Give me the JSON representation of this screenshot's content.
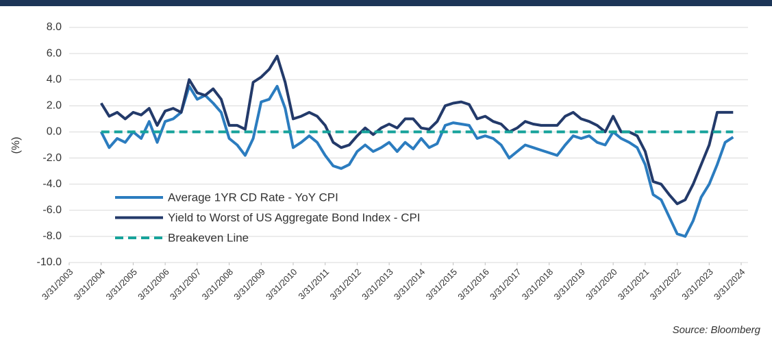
{
  "chart_data": {
    "type": "line",
    "y_label": "(%)",
    "source": "Source: Bloomberg",
    "x": [
      2004.25,
      2004.5,
      2004.75,
      2005,
      2005.25,
      2005.5,
      2005.75,
      2006,
      2006.25,
      2006.5,
      2006.75,
      2007,
      2007.25,
      2007.5,
      2007.75,
      2008,
      2008.25,
      2008.5,
      2008.75,
      2009,
      2009.25,
      2009.5,
      2009.75,
      2010,
      2010.25,
      2010.5,
      2010.75,
      2011,
      2011.25,
      2011.5,
      2011.75,
      2012,
      2012.25,
      2012.5,
      2012.75,
      2013,
      2013.25,
      2013.5,
      2013.75,
      2014,
      2014.25,
      2014.5,
      2014.75,
      2015,
      2015.25,
      2015.5,
      2015.75,
      2016,
      2016.25,
      2016.5,
      2016.75,
      2017,
      2017.25,
      2017.5,
      2017.75,
      2018,
      2018.25,
      2018.5,
      2018.75,
      2019,
      2019.25,
      2019.5,
      2019.75,
      2020,
      2020.25,
      2020.5,
      2020.75,
      2021,
      2021.25,
      2021.5,
      2021.75,
      2022,
      2022.25,
      2022.5,
      2022.75,
      2023,
      2023.25,
      2023.5,
      2023.75,
      2024
    ],
    "series": [
      {
        "name": "Average 1YR CD Rate - YoY CPI",
        "color": "#2b7cbf",
        "dash": false,
        "values": [
          0.0,
          -1.2,
          -0.5,
          -0.8,
          0.0,
          -0.5,
          0.8,
          -0.8,
          0.8,
          1.0,
          1.5,
          3.5,
          2.5,
          2.8,
          2.2,
          1.5,
          -0.5,
          -1.0,
          -1.8,
          -0.5,
          2.3,
          2.5,
          3.5,
          1.8,
          -1.2,
          -0.8,
          -0.3,
          -0.8,
          -1.8,
          -2.6,
          -2.8,
          -2.5,
          -1.5,
          -1.0,
          -1.5,
          -1.2,
          -0.8,
          -1.5,
          -0.8,
          -1.3,
          -0.5,
          -1.2,
          -0.9,
          0.5,
          0.7,
          0.6,
          0.5,
          -0.5,
          -0.3,
          -0.5,
          -1.0,
          -2.0,
          -1.5,
          -1.0,
          -1.2,
          -1.4,
          -1.6,
          -1.8,
          -1.0,
          -0.3,
          -0.5,
          -0.3,
          -0.8,
          -1.0,
          0.0,
          -0.5,
          -0.8,
          -1.2,
          -2.5,
          -4.8,
          -5.2,
          -6.5,
          -7.8,
          -8.0,
          -6.8,
          -5.0,
          -4.0,
          -2.5,
          -0.8,
          -0.4
        ]
      },
      {
        "name": "Yield to Worst of US Aggregate Bond Index - CPI",
        "color": "#233a6a",
        "dash": false,
        "values": [
          2.2,
          1.2,
          1.5,
          1.0,
          1.5,
          1.3,
          1.8,
          0.5,
          1.6,
          1.8,
          1.5,
          4.0,
          3.0,
          2.8,
          3.3,
          2.5,
          0.5,
          0.5,
          0.2,
          3.8,
          4.2,
          4.8,
          5.8,
          3.8,
          1.0,
          1.2,
          1.5,
          1.2,
          0.5,
          -0.8,
          -1.2,
          -1.0,
          -0.3,
          0.3,
          -0.2,
          0.3,
          0.6,
          0.3,
          1.0,
          1.0,
          0.3,
          0.2,
          0.8,
          2.0,
          2.2,
          2.3,
          2.1,
          1.0,
          1.2,
          0.8,
          0.6,
          0.0,
          0.3,
          0.8,
          0.6,
          0.5,
          0.5,
          0.5,
          1.2,
          1.5,
          1.0,
          0.8,
          0.5,
          0.0,
          1.2,
          0.0,
          0.0,
          -0.3,
          -1.5,
          -3.8,
          -4.0,
          -4.8,
          -5.5,
          -5.2,
          -4.0,
          -2.5,
          -1.0,
          1.5,
          1.5,
          1.5
        ]
      },
      {
        "name": "Breakeven Line",
        "color": "#17a39b",
        "dash": true,
        "values": [
          0,
          0,
          0,
          0,
          0,
          0,
          0,
          0,
          0,
          0,
          0,
          0,
          0,
          0,
          0,
          0,
          0,
          0,
          0,
          0,
          0,
          0,
          0,
          0,
          0,
          0,
          0,
          0,
          0,
          0,
          0,
          0,
          0,
          0,
          0,
          0,
          0,
          0,
          0,
          0,
          0,
          0,
          0,
          0,
          0,
          0,
          0,
          0,
          0,
          0,
          0,
          0,
          0,
          0,
          0,
          0,
          0,
          0,
          0,
          0,
          0,
          0,
          0,
          0,
          0,
          0,
          0,
          0,
          0,
          0,
          0,
          0,
          0,
          0,
          0,
          0,
          0,
          0,
          0,
          0
        ]
      }
    ],
    "xlim": [
      2003.25,
      2024.25
    ],
    "xticks": [
      {
        "value": 2003.25,
        "label": "3/31/2003"
      },
      {
        "value": 2004.25,
        "label": "3/31/2004"
      },
      {
        "value": 2005.25,
        "label": "3/31/2005"
      },
      {
        "value": 2006.25,
        "label": "3/31/2006"
      },
      {
        "value": 2007.25,
        "label": "3/31/2007"
      },
      {
        "value": 2008.25,
        "label": "3/31/2008"
      },
      {
        "value": 2009.25,
        "label": "3/31/2009"
      },
      {
        "value": 2010.25,
        "label": "3/31/2010"
      },
      {
        "value": 2011.25,
        "label": "3/31/2011"
      },
      {
        "value": 2012.25,
        "label": "3/31/2012"
      },
      {
        "value": 2013.25,
        "label": "3/31/2013"
      },
      {
        "value": 2014.25,
        "label": "3/31/2014"
      },
      {
        "value": 2015.25,
        "label": "3/31/2015"
      },
      {
        "value": 2016.25,
        "label": "3/31/2016"
      },
      {
        "value": 2017.25,
        "label": "3/31/2017"
      },
      {
        "value": 2018.25,
        "label": "3/31/2018"
      },
      {
        "value": 2019.25,
        "label": "3/31/2019"
      },
      {
        "value": 2020.25,
        "label": "3/31/2020"
      },
      {
        "value": 2021.25,
        "label": "3/31/2021"
      },
      {
        "value": 2022.25,
        "label": "3/31/2022"
      },
      {
        "value": 2023.25,
        "label": "3/31/2023"
      },
      {
        "value": 2024.25,
        "label": "3/31/2024"
      }
    ],
    "ylim": [
      -10,
      8
    ],
    "yticks": [
      {
        "value": 8,
        "label": "8.0"
      },
      {
        "value": 6,
        "label": "6.0"
      },
      {
        "value": 4,
        "label": "4.0"
      },
      {
        "value": 2,
        "label": "2.0"
      },
      {
        "value": 0,
        "label": "0.0"
      },
      {
        "value": -2,
        "label": "-2.0"
      },
      {
        "value": -4,
        "label": "-4.0"
      },
      {
        "value": -6,
        "label": "-6.0"
      },
      {
        "value": -8,
        "label": "-8.0"
      },
      {
        "value": -10,
        "label": "-10.0"
      }
    ],
    "grid": true
  }
}
